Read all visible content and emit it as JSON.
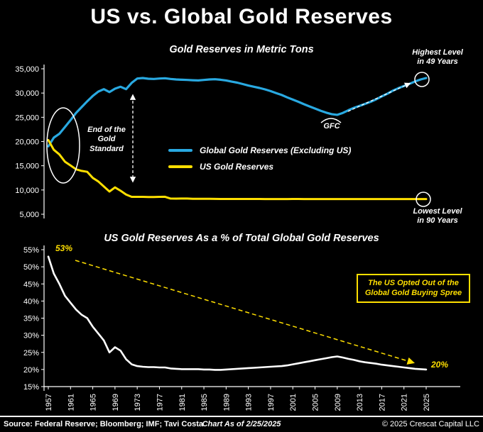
{
  "title": "US vs. Global Gold Reserves",
  "colors": {
    "background": "#000000",
    "text": "#FFFFFF",
    "global_series": "#29A9E1",
    "us_series": "#FFDF00",
    "pct_series": "#FFFFFF",
    "highlight": "#FFDF00"
  },
  "chart_data": [
    {
      "type": "line",
      "title": "Gold Reserves in Metric Tons",
      "xlabel": "",
      "ylabel": "",
      "ylim": [
        5000,
        35000
      ],
      "yticks": [
        5000,
        10000,
        15000,
        20000,
        25000,
        30000,
        35000
      ],
      "ytick_labels": [
        "5,000",
        "10,000",
        "15,000",
        "20,000",
        "25,000",
        "30,000",
        "35,000"
      ],
      "legend_position": "center",
      "x": [
        1957,
        1958,
        1959,
        1960,
        1961,
        1962,
        1963,
        1964,
        1965,
        1966,
        1967,
        1968,
        1969,
        1970,
        1971,
        1972,
        1973,
        1974,
        1975,
        1976,
        1977,
        1978,
        1979,
        1980,
        1981,
        1982,
        1983,
        1984,
        1985,
        1986,
        1987,
        1988,
        1989,
        1990,
        1991,
        1992,
        1993,
        1994,
        1995,
        1996,
        1997,
        1998,
        1999,
        2000,
        2001,
        2002,
        2003,
        2004,
        2005,
        2006,
        2007,
        2008,
        2009,
        2010,
        2011,
        2012,
        2013,
        2014,
        2015,
        2016,
        2017,
        2018,
        2019,
        2020,
        2021,
        2022,
        2023,
        2024,
        2025
      ],
      "series": [
        {
          "name": "Global Gold Reserves (Excluding US)",
          "color": "#29A9E1",
          "values": [
            19000,
            20800,
            21600,
            23000,
            24400,
            25900,
            27100,
            28300,
            29400,
            30300,
            30800,
            30200,
            30900,
            31300,
            30800,
            32100,
            33000,
            33100,
            32950,
            32900,
            33000,
            33050,
            32900,
            32800,
            32750,
            32700,
            32650,
            32600,
            32700,
            32800,
            32850,
            32750,
            32600,
            32350,
            32150,
            31850,
            31550,
            31300,
            31050,
            30750,
            30400,
            30000,
            29600,
            29100,
            28650,
            28200,
            27700,
            27250,
            26800,
            26350,
            25950,
            25650,
            25500,
            25900,
            26450,
            26950,
            27350,
            27750,
            28200,
            28700,
            29300,
            29850,
            30500,
            31000,
            31450,
            31900,
            32400,
            32800,
            33100
          ]
        },
        {
          "name": "US Gold Reserves",
          "color": "#FFDF00",
          "values": [
            20312,
            18290,
            17335,
            15822,
            15060,
            14269,
            13947,
            13750,
            12499,
            11762,
            10722,
            9679,
            10539,
            9839,
            9070,
            8584,
            8584,
            8584,
            8544,
            8544,
            8588,
            8597,
            8229,
            8221,
            8227,
            8230,
            8192,
            8174,
            8169,
            8184,
            8160,
            8147,
            8146,
            8146,
            8146,
            8144,
            8143,
            8141,
            8140,
            8138,
            8137,
            8137,
            8137,
            8137,
            8149,
            8149,
            8135,
            8136,
            8135,
            8133,
            8133,
            8133,
            8133,
            8133,
            8133,
            8133,
            8133,
            8133,
            8133,
            8133,
            8133,
            8133,
            8133,
            8133,
            8133,
            8133,
            8133,
            8133,
            8133
          ]
        }
      ],
      "annotations": {
        "end_gold_standard": "End of the\nGold\nStandard",
        "gfc": "GFC",
        "highest": "Highest Level\nin 49 Years",
        "lowest": "Lowest Level\nin 90 Years"
      }
    },
    {
      "type": "line",
      "title": "US Gold Reserves As a % of Total Global Gold Reserves",
      "xlabel": "",
      "ylabel": "",
      "ylim": [
        15,
        55
      ],
      "yticks": [
        15,
        20,
        25,
        30,
        35,
        40,
        45,
        50,
        55
      ],
      "ytick_labels": [
        "15%",
        "20%",
        "25%",
        "30%",
        "35%",
        "40%",
        "45%",
        "50%",
        "55%"
      ],
      "xticks": [
        1957,
        1961,
        1965,
        1969,
        1973,
        1977,
        1981,
        1985,
        1989,
        1993,
        1997,
        2001,
        2005,
        2009,
        2013,
        2017,
        2021,
        2025
      ],
      "x": [
        1957,
        1958,
        1959,
        1960,
        1961,
        1962,
        1963,
        1964,
        1965,
        1966,
        1967,
        1968,
        1969,
        1970,
        1971,
        1972,
        1973,
        1974,
        1975,
        1976,
        1977,
        1978,
        1979,
        1980,
        1981,
        1982,
        1983,
        1984,
        1985,
        1986,
        1987,
        1988,
        1989,
        1990,
        1991,
        1992,
        1993,
        1994,
        1995,
        1996,
        1997,
        1998,
        1999,
        2000,
        2001,
        2002,
        2003,
        2004,
        2005,
        2006,
        2007,
        2008,
        2009,
        2010,
        2011,
        2012,
        2013,
        2014,
        2015,
        2016,
        2017,
        2018,
        2019,
        2020,
        2021,
        2022,
        2023,
        2024,
        2025
      ],
      "series": [
        {
          "name": "US Gold Reserves % of Total Global Gold Reserves",
          "color": "#FFFFFF",
          "values": [
            53.0,
            48.0,
            45.0,
            41.5,
            39.5,
            37.5,
            36.0,
            35.0,
            32.5,
            30.5,
            28.5,
            25.0,
            26.5,
            25.5,
            23.0,
            21.5,
            21.0,
            20.8,
            20.7,
            20.7,
            20.6,
            20.6,
            20.3,
            20.2,
            20.1,
            20.1,
            20.1,
            20.1,
            20.0,
            20.0,
            19.9,
            19.9,
            20.0,
            20.1,
            20.2,
            20.3,
            20.4,
            20.5,
            20.6,
            20.7,
            20.8,
            20.9,
            21.0,
            21.2,
            21.5,
            21.8,
            22.1,
            22.4,
            22.7,
            23.0,
            23.3,
            23.6,
            23.8,
            23.5,
            23.1,
            22.8,
            22.4,
            22.1,
            21.9,
            21.7,
            21.4,
            21.2,
            21.0,
            20.8,
            20.6,
            20.4,
            20.2,
            20.1,
            20.0
          ]
        }
      ],
      "annotations": {
        "start_value": "53%",
        "end_value": "20%",
        "callout": "The US Opted Out of the\nGlobal Gold Buying Spree"
      }
    }
  ],
  "footer": {
    "source": "Source: Federal Reserve; Bloomberg; IMF; Tavi Costa",
    "as_of": "Chart As of 2/25/2025",
    "copyright": "© 2025 Crescat Capital LLC"
  }
}
